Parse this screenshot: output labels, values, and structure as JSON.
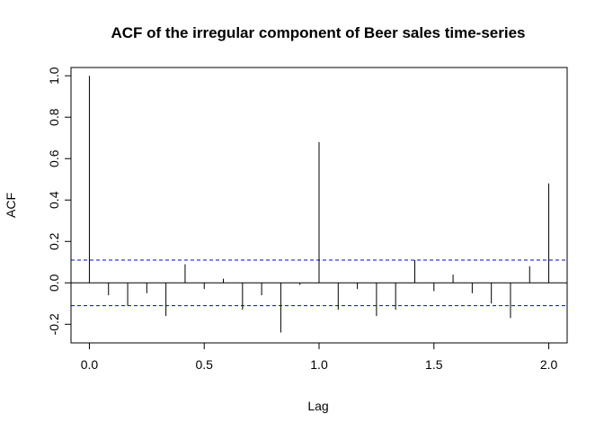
{
  "chart_data": {
    "type": "bar",
    "title": "ACF of the irregular component of Beer sales time-series",
    "xlabel": "Lag",
    "ylabel": "ACF",
    "xlim": [
      -0.08,
      2.08
    ],
    "ylim": [
      -0.29,
      1.04
    ],
    "x_ticks": [
      "0.0",
      "0.5",
      "1.0",
      "1.5",
      "2.0"
    ],
    "x_tick_values": [
      0.0,
      0.5,
      1.0,
      1.5,
      2.0
    ],
    "y_ticks": [
      "-0.2",
      "0.0",
      "0.2",
      "0.4",
      "0.6",
      "0.8",
      "1.0"
    ],
    "y_tick_values": [
      -0.2,
      0.0,
      0.2,
      0.4,
      0.6,
      0.8,
      1.0
    ],
    "confidence_bound": 0.11,
    "confidence_color": "#0000ff",
    "grid": false,
    "lags": [
      0,
      0.0833,
      0.1667,
      0.25,
      0.3333,
      0.4167,
      0.5,
      0.5833,
      0.6667,
      0.75,
      0.8333,
      0.9167,
      1.0,
      1.0833,
      1.1667,
      1.25,
      1.3333,
      1.4167,
      1.5,
      1.5833,
      1.6667,
      1.75,
      1.8333,
      1.9167,
      2.0
    ],
    "values": [
      1.0,
      -0.06,
      -0.11,
      -0.05,
      -0.16,
      0.09,
      -0.03,
      0.02,
      -0.13,
      -0.06,
      -0.24,
      -0.01,
      0.68,
      -0.13,
      -0.03,
      -0.16,
      -0.13,
      0.11,
      -0.04,
      0.04,
      -0.05,
      -0.1,
      -0.17,
      0.08,
      0.48
    ]
  }
}
